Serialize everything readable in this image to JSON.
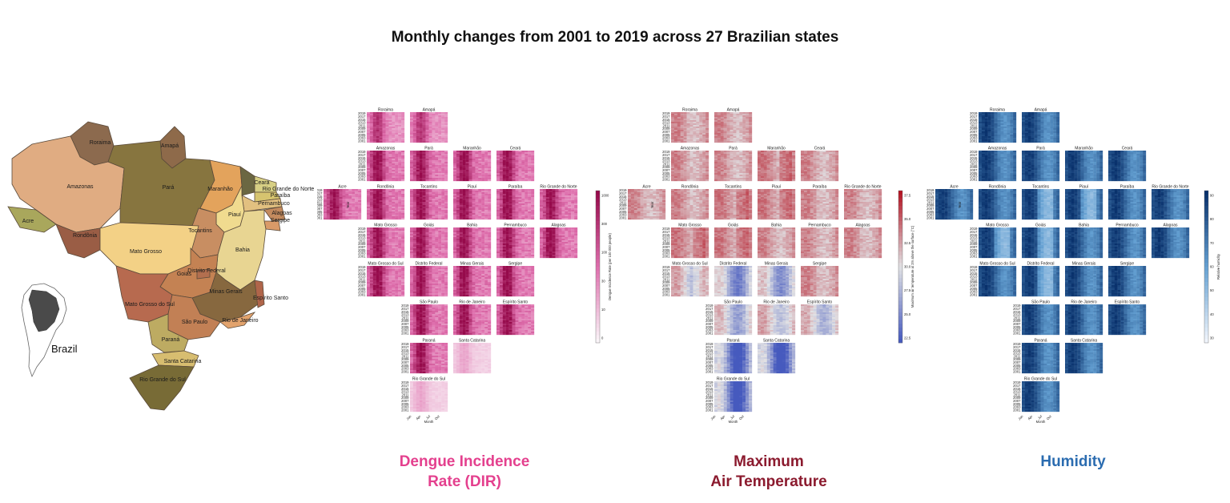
{
  "title": "Monthly changes from 2001 to 2019 across 27 Brazilian states",
  "map": {
    "inset_label": "Brazil",
    "states": [
      {
        "name": "Roraima",
        "color": "#8c6a4e"
      },
      {
        "name": "Amapá",
        "color": "#8e6a4a"
      },
      {
        "name": "Amazonas",
        "color": "#e0ac82"
      },
      {
        "name": "Pará",
        "color": "#87753f"
      },
      {
        "name": "Maranhão",
        "color": "#e3a35c"
      },
      {
        "name": "Ceará",
        "color": "#6b6742"
      },
      {
        "name": "Rio Grande do Norte",
        "color": "#d7cf84"
      },
      {
        "name": "Paraíba",
        "color": "#d6c46f"
      },
      {
        "name": "Pernambuco",
        "color": "#e2c080"
      },
      {
        "name": "Alagoas",
        "color": "#c38a5e"
      },
      {
        "name": "Sergipe",
        "color": "#d99a68"
      },
      {
        "name": "Piauí",
        "color": "#f0db8f"
      },
      {
        "name": "Acre",
        "color": "#a9a75c"
      },
      {
        "name": "Rondônia",
        "color": "#9a5d45"
      },
      {
        "name": "Tocantins",
        "color": "#c88e62"
      },
      {
        "name": "Bahia",
        "color": "#e8d592"
      },
      {
        "name": "Mato Grosso",
        "color": "#f3d186"
      },
      {
        "name": "Goiás",
        "color": "#c48253"
      },
      {
        "name": "Distrito Federal",
        "color": "#b26f4f"
      },
      {
        "name": "Minas Gerais",
        "color": "#87683f"
      },
      {
        "name": "Espírito Santo",
        "color": "#b0654a"
      },
      {
        "name": "Mato Grosso do Sul",
        "color": "#b76a4f"
      },
      {
        "name": "São Paulo",
        "color": "#c28055"
      },
      {
        "name": "Rio de Janeiro",
        "color": "#e2a36d"
      },
      {
        "name": "Paraná",
        "color": "#bdab62"
      },
      {
        "name": "Santa Catarina",
        "color": "#d7bd70"
      },
      {
        "name": "Rio Grande do Sul",
        "color": "#786b36"
      }
    ]
  },
  "panels": [
    {
      "id": "dir",
      "label_line1": "Dengue Incidence",
      "label_line2": "Rate (DIR)",
      "label_color": "#e4408e",
      "colorbar_label": "Dengue Incidence Rate (per 100 000 people)",
      "colorbar_ticks": [
        "1000",
        "300",
        "100",
        "30",
        "10",
        "0"
      ],
      "colormap": "pink"
    },
    {
      "id": "temp",
      "label_line1": "Maximum",
      "label_line2": "Air Temperature",
      "label_color": "#8b1a2e",
      "colorbar_label": "Maximum air temperature at 2m above the surface (°C)",
      "colorbar_ticks": [
        "37.5",
        "35.0",
        "32.5",
        "30.0",
        "27.5",
        "25.0",
        "22.5"
      ],
      "colormap": "coolwarm"
    },
    {
      "id": "hum",
      "label_line1": "Humidity",
      "label_line2": "",
      "label_color": "#2b6cb0",
      "colorbar_label": "Relative humidity",
      "colorbar_ticks": [
        "90",
        "80",
        "70",
        "60",
        "50",
        "40",
        "30"
      ],
      "colormap": "blues"
    }
  ],
  "chart_data": {
    "type": "heatmap",
    "title": "Monthly changes from 2001 to 2019 across 27 Brazilian states",
    "xlabel": "Month",
    "ylabel": "Year",
    "x_tick_labels": [
      "Jan",
      "Apr",
      "Jul",
      "Oct"
    ],
    "y_tick_labels": [
      "2019",
      "2017",
      "2015",
      "2013",
      "2011",
      "2009",
      "2007",
      "2005",
      "2003",
      "2001"
    ],
    "years": [
      2001,
      2019
    ],
    "states_layout": [
      [
        "Roraima",
        "Amapá",
        "",
        "",
        ""
      ],
      [
        "Amazonas",
        "Pará",
        "Maranhão",
        "Ceará",
        ""
      ],
      [
        "Acre",
        "Rondônia",
        "Tocantins",
        "Piauí",
        "Paraíba",
        "Rio Grande do Norte"
      ],
      [
        "Mato Grosso",
        "Goiás",
        "Bahia",
        "Pernambuco",
        "Alagoas"
      ],
      [
        "Mato Grosso do Sul",
        "Distrito Federal",
        "Minas Gerais",
        "Sergipe"
      ],
      [
        "São Paulo",
        "Rio de Janeiro",
        "Espírito Santo"
      ],
      [
        "Paraná",
        "Santa Catarina"
      ],
      [
        "Rio Grande do Sul"
      ]
    ],
    "colorbar_ranges": {
      "dir": [
        0,
        1000
      ],
      "temp": [
        22.5,
        37.5
      ],
      "hum": [
        30,
        90
      ]
    }
  }
}
